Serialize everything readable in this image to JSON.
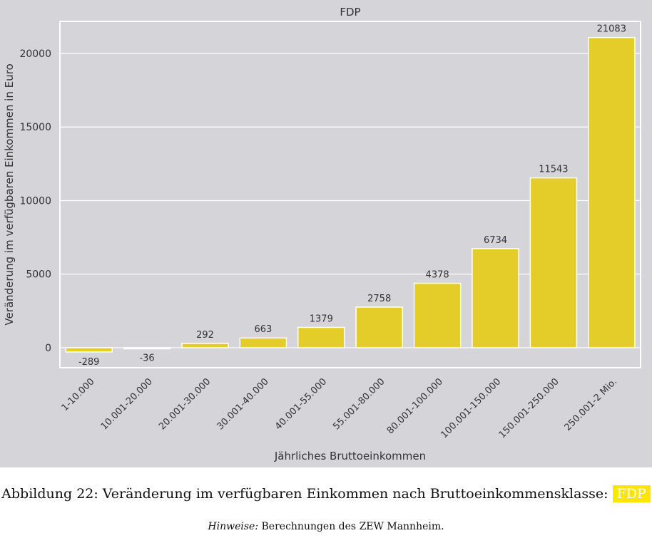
{
  "chart_data": {
    "type": "bar",
    "title": "FDP",
    "xlabel": "Jährliches Bruttoeinkommen",
    "ylabel": "Veränderung im verfügbaren Einkommen in Euro",
    "categories": [
      "1-10.000",
      "10.001-20.000",
      "20.001-30.000",
      "30.001-40.000",
      "40.001-55.000",
      "55.001-80.000",
      "80.001-100.000",
      "100.001-150.000",
      "150.001-250.000",
      "250.001-2 Mio."
    ],
    "values": [
      -289,
      -36,
      292,
      663,
      1379,
      2758,
      4378,
      6734,
      11543,
      21083
    ],
    "yticks": [
      0,
      5000,
      10000,
      15000,
      20000
    ],
    "ylim": [
      -1360,
      22180
    ],
    "grid": true,
    "bar_color": "#e4cc29",
    "background": "#d5d4d9"
  },
  "caption": {
    "text": "Abbildung 22: Veränderung im verfügbaren Einkommen nach Bruttoeinkommensklasse:",
    "tag": "FDP"
  },
  "note": {
    "label": "Hinweise:",
    "text": " Berechnungen des ZEW Mannheim."
  }
}
